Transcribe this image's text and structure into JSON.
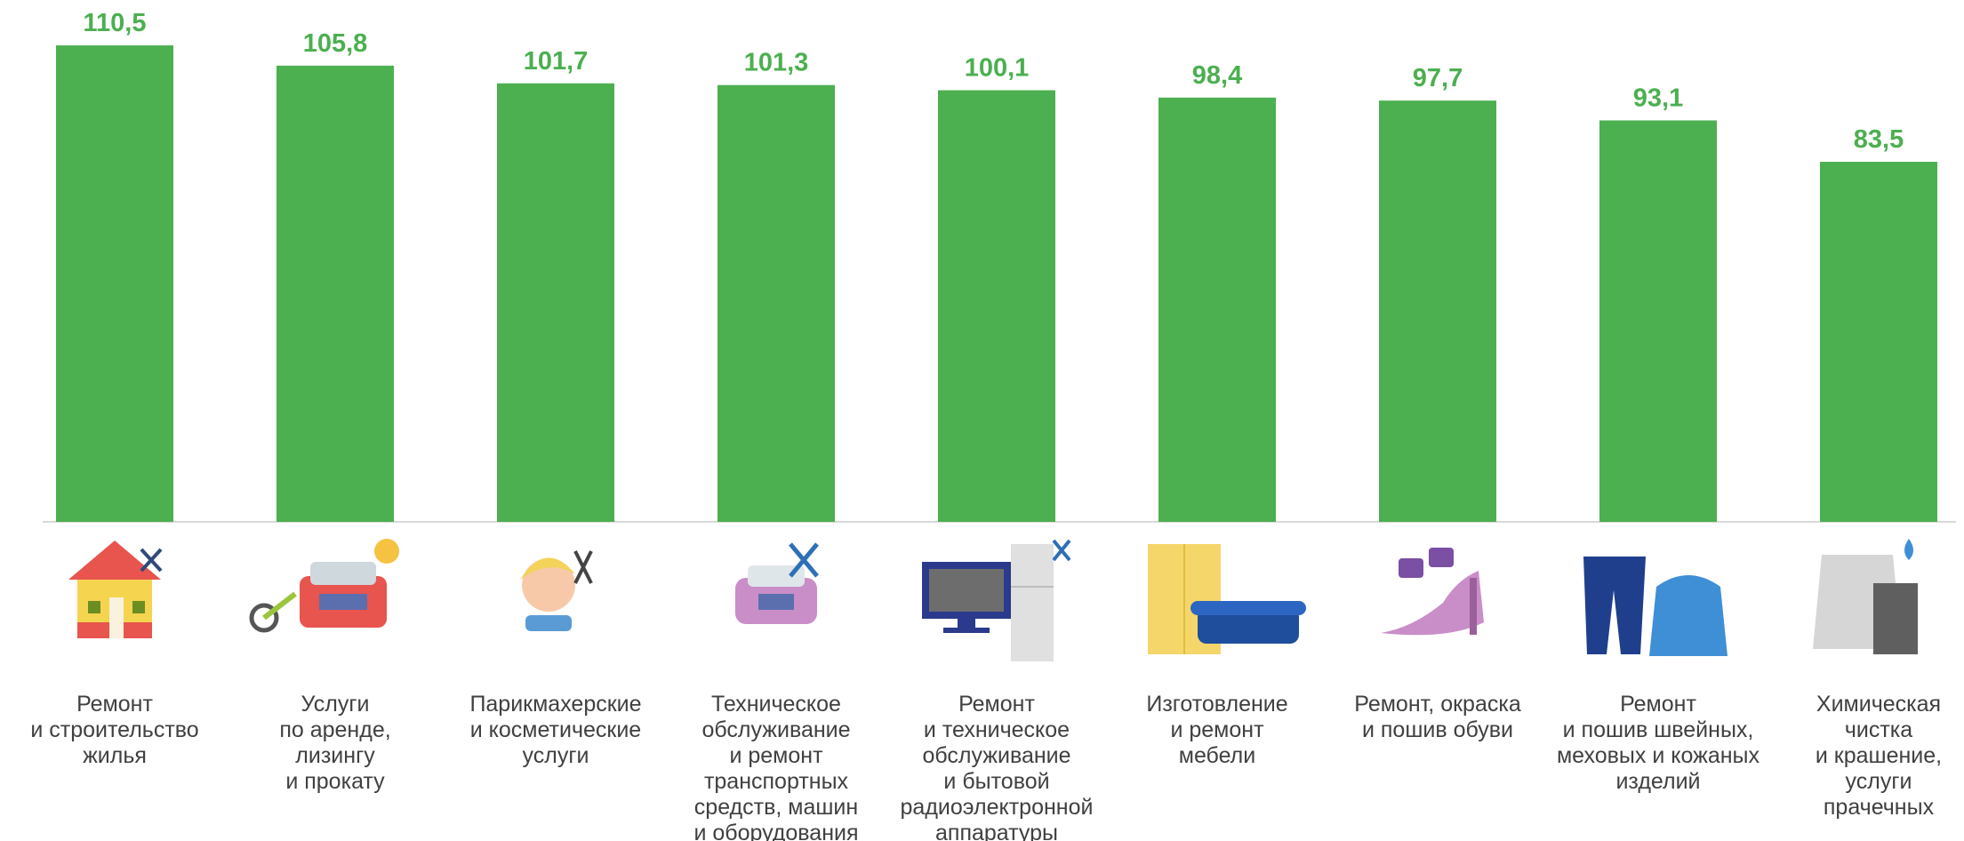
{
  "chart_data": {
    "type": "bar",
    "categories": [
      [
        "Ремонт",
        "и строительство",
        "жилья"
      ],
      [
        "Услуги",
        "по аренде,",
        "лизингу",
        "и прокату"
      ],
      [
        "Парикмахерские",
        "и косметические",
        "услуги"
      ],
      [
        "Техническое",
        "обслуживание",
        "и ремонт",
        "транспортных",
        "средств, машин",
        "и оборудования"
      ],
      [
        "Ремонт",
        "и техническое",
        "обслуживание",
        "и бытовой",
        "радиоэлектронной",
        "аппаратуры"
      ],
      [
        "Изготовление",
        "и ремонт",
        "мебели"
      ],
      [
        "Ремонт, окраска",
        "и пошив обуви"
      ],
      [
        "Ремонт",
        "и пошив швейных,",
        "меховых и кожаных",
        "изделий"
      ],
      [
        "Химическая",
        "чистка",
        "и крашение,",
        "услуги",
        "прачечных"
      ]
    ],
    "values": [
      110.5,
      105.8,
      101.7,
      101.3,
      100.1,
      98.4,
      97.7,
      93.1,
      83.5
    ],
    "value_labels": [
      "110,5",
      "105,8",
      "101,7",
      "101,3",
      "100,1",
      "98,4",
      "97,7",
      "93,1",
      "83,5"
    ],
    "icons": [
      "house-repair-icon",
      "rental-car-bike-icon",
      "hairdresser-icon",
      "car-service-icon",
      "tv-fridge-repair-icon",
      "furniture-icon",
      "shoe-repair-icon",
      "clothing-repair-icon",
      "dry-cleaning-icon"
    ],
    "bar_color": "#4caf50",
    "label_color": "#4caf50",
    "text_color": "#404040",
    "axis_color": "#d9d9d9",
    "ylim": [
      0,
      120
    ],
    "grid": false,
    "legend": "none"
  }
}
